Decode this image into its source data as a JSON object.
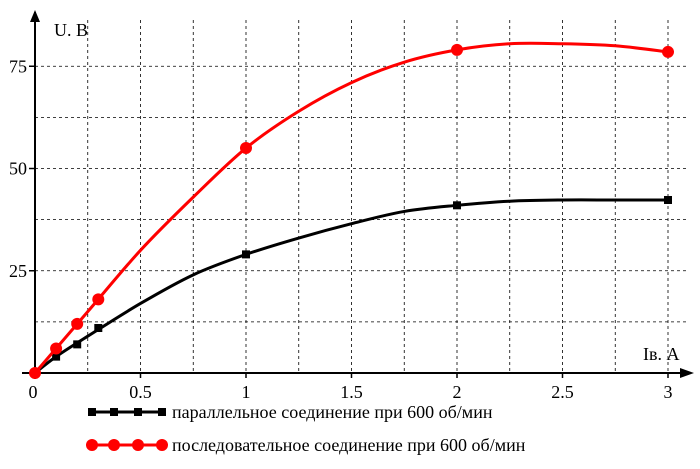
{
  "chart_data": {
    "type": "line",
    "xlabel": "Iв. А",
    "ylabel": "U. В",
    "xlim": [
      0,
      3.1
    ],
    "ylim": [
      0,
      87
    ],
    "grid": true,
    "x_ticks": [
      "0",
      "0.5",
      "1",
      "1.5",
      "2",
      "2.5",
      "3"
    ],
    "y_ticks": [
      "25",
      "50",
      "75"
    ],
    "origin_label": "0",
    "legend_position": "bottom",
    "series": [
      {
        "name": "параллельное соединение при 600 об/мин",
        "color": "#000000",
        "marker": "square",
        "x": [
          0,
          0.1,
          0.25,
          0.5,
          0.75,
          1,
          1.25,
          1.5,
          1.75,
          2,
          2.25,
          2.5,
          2.75,
          3
        ],
        "y": [
          0,
          4,
          9,
          17,
          24,
          29,
          33,
          36.5,
          39.5,
          41,
          42,
          42.3,
          42.3,
          42.3
        ],
        "marker_x": [
          0,
          0.1,
          0.2,
          0.3,
          1,
          2,
          3
        ],
        "marker_y": [
          0,
          4,
          7,
          11,
          29,
          41,
          42.3
        ]
      },
      {
        "name": "последовательное соединение при 600 об/мин",
        "color": "#ff0000",
        "marker": "circle",
        "x": [
          0,
          0.25,
          0.5,
          0.75,
          1,
          1.25,
          1.5,
          1.75,
          2,
          2.25,
          2.5,
          2.75,
          3
        ],
        "y": [
          0,
          15,
          30,
          43,
          55,
          64,
          71,
          76,
          79,
          80.5,
          80.5,
          80,
          78.5
        ],
        "marker_x": [
          0,
          0.1,
          0.2,
          0.3,
          1,
          2,
          3
        ],
        "marker_y": [
          0,
          6,
          12,
          18,
          55,
          79,
          78.5
        ]
      }
    ]
  }
}
